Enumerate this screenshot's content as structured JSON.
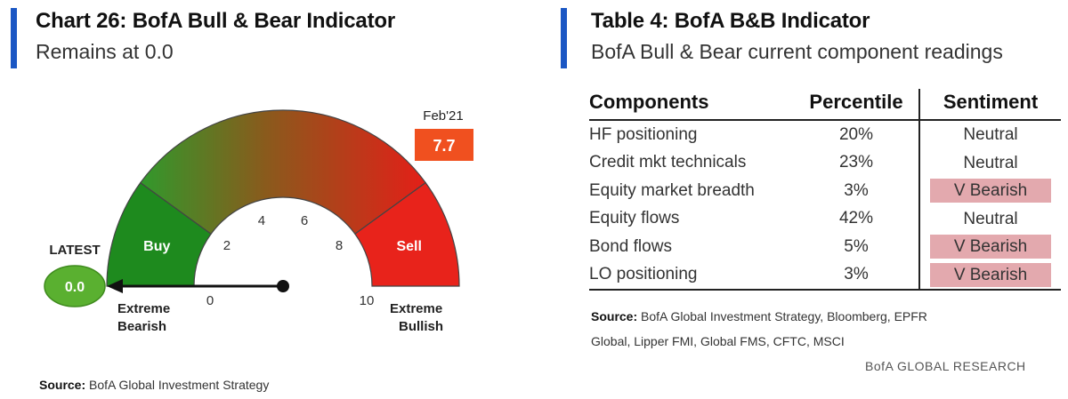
{
  "left": {
    "title": "Chart 26: BofA Bull & Bear Indicator",
    "subtitle": "Remains at 0.0",
    "source_label": "Source:",
    "source_text": "BofA Global Investment Strategy"
  },
  "chart_data": {
    "type": "gauge",
    "title": "Chart 26: BofA Bull & Bear Indicator",
    "subtitle": "Remains at 0.0",
    "scale": {
      "min": 0,
      "max": 10,
      "ticks": [
        0,
        2,
        4,
        6,
        8,
        10
      ]
    },
    "zones": [
      {
        "label": "Buy",
        "from": 0,
        "to": 2,
        "color": "#1e8a1e"
      },
      {
        "label": "",
        "from": 2,
        "to": 8,
        "color_start": "#2f9a2c",
        "color_end": "#e22018"
      },
      {
        "label": "Sell",
        "from": 8,
        "to": 10,
        "color": "#e8231b"
      }
    ],
    "end_labels": {
      "low": "Extreme Bearish",
      "high": "Extreme Bullish"
    },
    "latest": {
      "label": "LATEST",
      "value": 0.0,
      "display": "0.0",
      "color": "#5ab030"
    },
    "marker": {
      "label": "Feb'21",
      "value": 7.7,
      "display": "7.7",
      "color": "#f0501f"
    }
  },
  "right": {
    "title": "Table 4: BofA B&B Indicator",
    "subtitle": "BofA Bull & Bear current component readings",
    "columns": [
      "Components",
      "Percentile",
      "Sentiment"
    ],
    "rows": [
      {
        "component": "HF positioning",
        "percentile": "20%",
        "sentiment": "Neutral",
        "bearish": false
      },
      {
        "component": "Credit mkt technicals",
        "percentile": "23%",
        "sentiment": "Neutral",
        "bearish": false
      },
      {
        "component": "Equity market breadth",
        "percentile": "3%",
        "sentiment": "V Bearish",
        "bearish": true
      },
      {
        "component": "Equity flows",
        "percentile": "42%",
        "sentiment": "Neutral",
        "bearish": false
      },
      {
        "component": "Bond flows",
        "percentile": "5%",
        "sentiment": "V Bearish",
        "bearish": true
      },
      {
        "component": "LO positioning",
        "percentile": "3%",
        "sentiment": "V Bearish",
        "bearish": true
      }
    ],
    "source_label": "Source:",
    "source_line1": "BofA Global Investment Strategy, Bloomberg, EPFR",
    "source_line2": "Global, Lipper FMI, Global FMS, CFTC, MSCI",
    "brand": "BofA GLOBAL RESEARCH"
  },
  "colors": {
    "accent": "#1b57c4",
    "bearish_cell": "#e3a9ae"
  }
}
